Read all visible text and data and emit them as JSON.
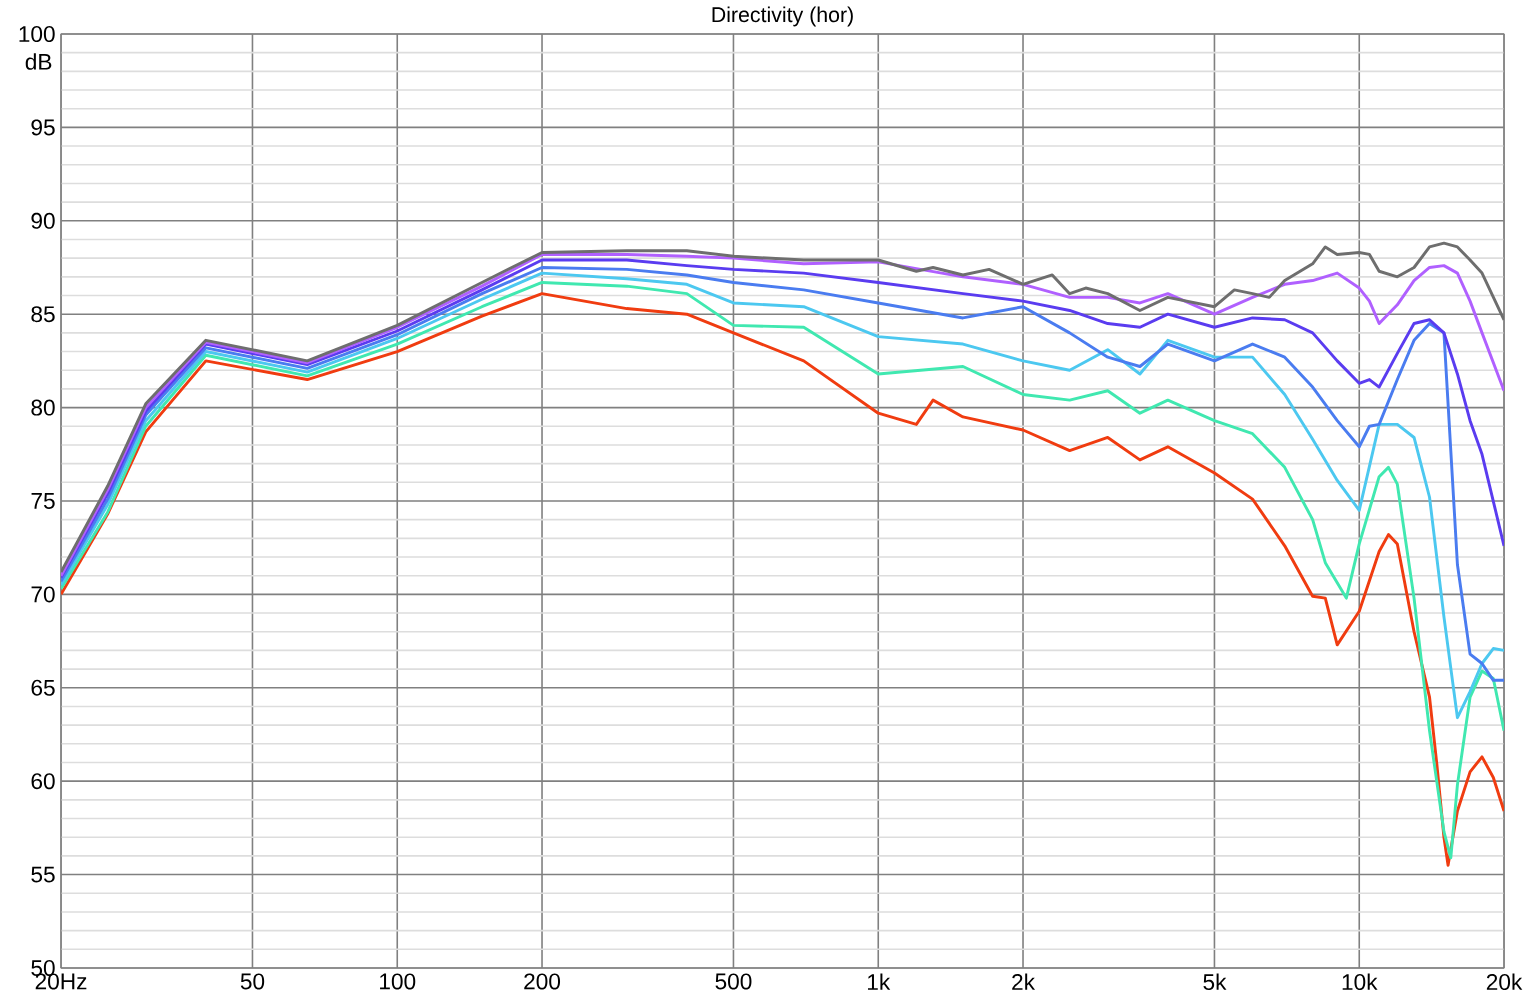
{
  "chart_data": {
    "type": "line",
    "title": "Directivity (hor)",
    "ylabel": "dB",
    "log": "x",
    "grid": true,
    "xlim": [
      20,
      20000
    ],
    "ylim": [
      50,
      100
    ],
    "xticks": [
      {
        "value": 20,
        "label": "20Hz"
      },
      50,
      100,
      200,
      500,
      {
        "value": 1000,
        "label": "1k"
      },
      {
        "value": 2000,
        "label": "2k"
      },
      {
        "value": 5000,
        "label": "5k"
      },
      {
        "value": 10000,
        "label": "10k"
      },
      {
        "value": 20000,
        "label": "20k"
      }
    ],
    "yticks": [
      50,
      55,
      60,
      65,
      70,
      75,
      80,
      85,
      90,
      95,
      100
    ],
    "series": [
      {
        "color": "#6e6e6e",
        "x": [
          20,
          25,
          30,
          40,
          65,
          100,
          150,
          200,
          300,
          400,
          500,
          700,
          1000,
          1200,
          1300,
          1500,
          1700,
          2000,
          2300,
          2500,
          2700,
          3000,
          3500,
          4000,
          5000,
          5500,
          6000,
          6500,
          7000,
          8000,
          8500,
          9000,
          10000,
          10500,
          11000,
          12000,
          13000,
          14000,
          15000,
          16000,
          17000,
          18000,
          20000
        ],
        "values": [
          71.2,
          75.8,
          80.2,
          83.6,
          82.5,
          84.4,
          86.7,
          88.3,
          88.4,
          88.4,
          88.1,
          87.9,
          87.9,
          87.3,
          87.5,
          87.1,
          87.4,
          86.6,
          87.1,
          86.1,
          86.4,
          86.1,
          85.2,
          85.9,
          85.4,
          86.3,
          86.1,
          85.9,
          86.8,
          87.7,
          88.6,
          88.2,
          88.3,
          88.2,
          87.3,
          87.0,
          87.5,
          88.6,
          88.8,
          88.6,
          87.9,
          87.2,
          84.7
        ]
      },
      {
        "color": "#b060ff",
        "x": [
          20,
          25,
          30,
          40,
          65,
          100,
          150,
          200,
          300,
          400,
          500,
          700,
          1000,
          1500,
          2000,
          2500,
          3000,
          3500,
          4000,
          5000,
          6000,
          7000,
          8000,
          9000,
          10000,
          10500,
          11000,
          12000,
          13000,
          14000,
          15000,
          16000,
          17000,
          18000,
          20000
        ],
        "values": [
          71.0,
          75.6,
          80.0,
          83.5,
          82.4,
          84.3,
          86.5,
          88.2,
          88.2,
          88.1,
          88.0,
          87.7,
          87.8,
          87.0,
          86.6,
          85.9,
          85.9,
          85.6,
          86.1,
          85.0,
          85.9,
          86.6,
          86.8,
          87.2,
          86.4,
          85.7,
          84.5,
          85.5,
          86.8,
          87.5,
          87.6,
          87.2,
          85.7,
          84.0,
          80.9
        ]
      },
      {
        "color": "#5a3cf0",
        "x": [
          20,
          25,
          30,
          40,
          65,
          100,
          150,
          200,
          300,
          400,
          500,
          700,
          1000,
          1500,
          2000,
          2500,
          3000,
          3500,
          4000,
          5000,
          6000,
          7000,
          8000,
          9000,
          10000,
          10500,
          11000,
          12000,
          13000,
          14000,
          15000,
          16000,
          17000,
          18000,
          20000
        ],
        "values": [
          70.9,
          75.4,
          79.8,
          83.4,
          82.3,
          84.1,
          86.3,
          87.9,
          87.9,
          87.6,
          87.4,
          87.2,
          86.7,
          86.1,
          85.7,
          85.2,
          84.5,
          84.3,
          85.0,
          84.3,
          84.8,
          84.7,
          84.0,
          82.5,
          81.3,
          81.5,
          81.1,
          82.9,
          84.5,
          84.7,
          84.0,
          81.8,
          79.3,
          77.5,
          72.6
        ]
      },
      {
        "color": "#4a7cf0",
        "x": [
          20,
          25,
          30,
          40,
          65,
          100,
          150,
          200,
          300,
          400,
          500,
          700,
          1000,
          1500,
          2000,
          2500,
          3000,
          3500,
          4000,
          5000,
          6000,
          7000,
          8000,
          9000,
          10000,
          10500,
          11000,
          12000,
          13000,
          14000,
          15000,
          16000,
          17000,
          18000,
          19000,
          20000
        ],
        "values": [
          70.7,
          75.1,
          79.6,
          83.2,
          82.1,
          83.9,
          86.1,
          87.5,
          87.4,
          87.1,
          86.7,
          86.3,
          85.6,
          84.8,
          85.4,
          84.0,
          82.7,
          82.2,
          83.4,
          82.5,
          83.4,
          82.7,
          81.1,
          79.3,
          77.9,
          79.0,
          79.1,
          81.5,
          83.6,
          84.5,
          84.0,
          71.6,
          66.8,
          66.3,
          65.4,
          65.4
        ]
      },
      {
        "color": "#4cc8f0",
        "x": [
          20,
          25,
          30,
          40,
          65,
          100,
          150,
          200,
          300,
          400,
          500,
          700,
          1000,
          1500,
          2000,
          2500,
          3000,
          3500,
          4000,
          5000,
          6000,
          7000,
          8000,
          9000,
          10000,
          11000,
          12000,
          13000,
          14000,
          15000,
          16000,
          17000,
          18000,
          19000,
          20000
        ],
        "values": [
          70.5,
          74.8,
          79.3,
          83.0,
          81.9,
          83.7,
          85.8,
          87.2,
          86.9,
          86.6,
          85.6,
          85.4,
          83.8,
          83.4,
          82.5,
          82.0,
          83.1,
          81.8,
          83.6,
          82.7,
          82.7,
          80.7,
          78.3,
          76.1,
          74.5,
          79.1,
          79.1,
          78.4,
          75.2,
          68.8,
          63.4,
          64.8,
          66.3,
          67.1,
          67.0
        ]
      },
      {
        "color": "#40e8b0",
        "x": [
          20,
          25,
          30,
          40,
          65,
          100,
          150,
          200,
          300,
          400,
          500,
          700,
          1000,
          1500,
          2000,
          2500,
          3000,
          3500,
          4000,
          5000,
          6000,
          7000,
          8000,
          8500,
          9400,
          10000,
          11000,
          11500,
          12000,
          13000,
          14000,
          15000,
          15500,
          16000,
          17000,
          18000,
          19000,
          20000
        ],
        "values": [
          70.3,
          74.4,
          79.0,
          82.8,
          81.7,
          83.4,
          85.4,
          86.7,
          86.5,
          86.1,
          84.4,
          84.3,
          81.8,
          82.2,
          80.7,
          80.4,
          80.9,
          79.7,
          80.4,
          79.3,
          78.6,
          76.8,
          74.0,
          71.7,
          69.8,
          72.7,
          76.3,
          76.8,
          75.9,
          69.8,
          62.7,
          57.3,
          55.9,
          59.8,
          64.5,
          65.9,
          65.5,
          62.7
        ]
      },
      {
        "color": "#f03c10",
        "x": [
          20,
          25,
          30,
          40,
          65,
          100,
          150,
          200,
          300,
          400,
          500,
          700,
          1000,
          1200,
          1300,
          1500,
          2000,
          2500,
          3000,
          3500,
          4000,
          5000,
          6000,
          7000,
          8000,
          8500,
          9000,
          10000,
          11000,
          11500,
          12000,
          13000,
          14000,
          14500,
          15000,
          15300,
          16000,
          17000,
          18000,
          19000,
          20000
        ],
        "values": [
          70.0,
          74.3,
          78.7,
          82.5,
          81.5,
          83.0,
          84.9,
          86.1,
          85.3,
          85.0,
          84.0,
          82.5,
          79.7,
          79.1,
          80.4,
          79.5,
          78.8,
          77.7,
          78.4,
          77.2,
          77.9,
          76.5,
          75.1,
          72.6,
          69.9,
          69.8,
          67.3,
          69.1,
          72.3,
          73.2,
          72.7,
          68.0,
          64.5,
          60.9,
          57.0,
          55.5,
          58.4,
          60.5,
          61.3,
          60.2,
          58.4
        ]
      }
    ]
  }
}
